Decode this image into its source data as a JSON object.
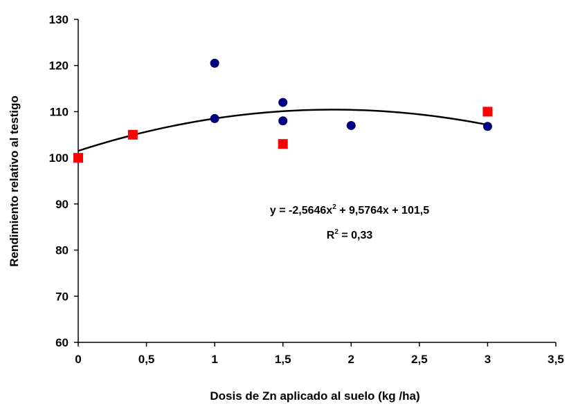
{
  "chart_data": {
    "type": "scatter",
    "xlabel": "Dosis de Zn aplicado al suelo (kg /ha)",
    "ylabel": "Rendimiento relativo al testigo",
    "xlim": [
      0,
      3.5
    ],
    "ylim": [
      60,
      130
    ],
    "x_ticks": [
      "0",
      "0,5",
      "1",
      "1,5",
      "2",
      "2,5",
      "3",
      "3,5"
    ],
    "y_ticks": [
      "60",
      "70",
      "80",
      "90",
      "100",
      "110",
      "120",
      "130"
    ],
    "grid": false,
    "series": [
      {
        "marker": "circle",
        "color": "#000080",
        "points": [
          {
            "x": 1,
            "y": 120.5
          },
          {
            "x": 1,
            "y": 108.5
          },
          {
            "x": 1.5,
            "y": 112
          },
          {
            "x": 1.5,
            "y": 108
          },
          {
            "x": 2,
            "y": 107
          },
          {
            "x": 3,
            "y": 106.8
          }
        ]
      },
      {
        "marker": "square",
        "color": "#ff0000",
        "points": [
          {
            "x": 0,
            "y": 100
          },
          {
            "x": 0.4,
            "y": 105
          },
          {
            "x": 1.5,
            "y": 103
          },
          {
            "x": 3,
            "y": 110
          }
        ]
      }
    ],
    "trendline": {
      "type": "polynomial",
      "coefficients": [
        -2.5646,
        9.5764,
        101.5
      ],
      "x_range": [
        0,
        3
      ],
      "color": "#000000"
    },
    "annotations": {
      "equation_main": "y = -2,5646x",
      "equation_sup": "2",
      "equation_rest": " + 9,5764x + 101,5",
      "r2_main": "R",
      "r2_sup": "2",
      "r2_rest": " = 0,33"
    }
  }
}
